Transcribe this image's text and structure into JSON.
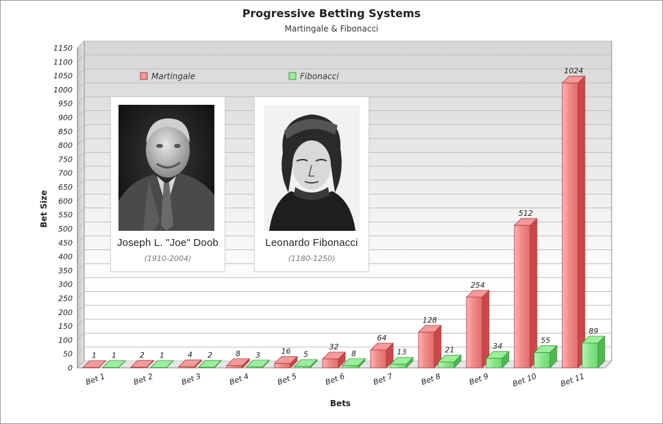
{
  "chart_data": {
    "type": "bar",
    "title": "Progressive Betting Systems",
    "subtitle": "Martingale & Fibonacci",
    "xlabel": "Bets",
    "ylabel": "Bet Size",
    "ylim": [
      0,
      1150
    ],
    "ytick_step": 50,
    "grid": true,
    "legend_position": "top-left",
    "categories": [
      "Bet 1",
      "Bet 2",
      "Bet 3",
      "Bet 4",
      "Bet 5",
      "Bet 6",
      "Bet 7",
      "Bet 8",
      "Bet 9",
      "Bet 10",
      "Bet 11"
    ],
    "series": [
      {
        "name": "Martingale",
        "color": "#e06060",
        "values": [
          1,
          2,
          4,
          8,
          16,
          32,
          64,
          128,
          254,
          512,
          1024
        ]
      },
      {
        "name": "Fibonacci",
        "color": "#6ed86e",
        "values": [
          1,
          1,
          2,
          3,
          5,
          8,
          13,
          21,
          34,
          55,
          89
        ]
      }
    ]
  },
  "portraits": [
    {
      "name": "Joseph L. \"Joe\" Doob",
      "years": "(1910-2004)"
    },
    {
      "name": "Leonardo Fibonacci",
      "years": "(1180-1250)"
    }
  ]
}
